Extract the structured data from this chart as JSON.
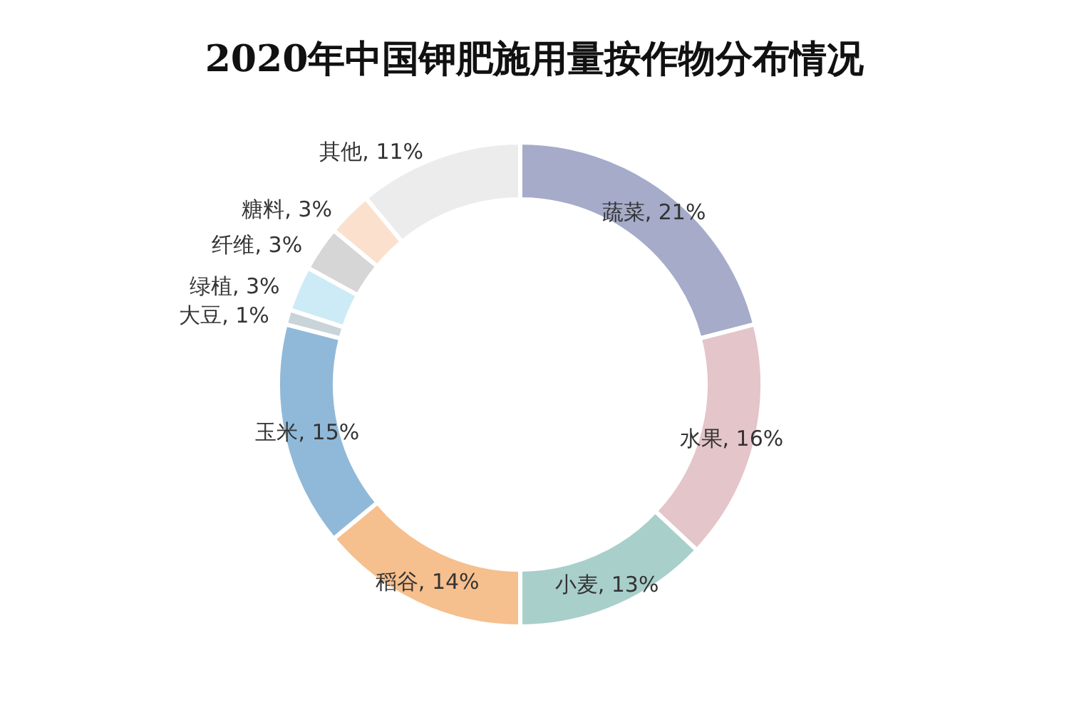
{
  "chart_data": {
    "type": "donut",
    "title": "2020年中国钾肥施用量按作物分布情况",
    "categories": [
      "蔬菜",
      "水果",
      "小麦",
      "稻谷",
      "玉米",
      "大豆",
      "绿植",
      "纤维",
      "糖料",
      "其他"
    ],
    "values": [
      21,
      16,
      13,
      14,
      15,
      1,
      3,
      3,
      3,
      11
    ],
    "value_labels": [
      "21%",
      "16%",
      "13%",
      "14%",
      "15%",
      "1%",
      "3%",
      "3%",
      "3%",
      "11%"
    ],
    "colors": [
      "#a5abc9",
      "#e4c5c9",
      "#a9cfcb",
      "#f6bf8e",
      "#90b9d9",
      "#c9d3da",
      "#cdebf6",
      "#d6d6d6",
      "#fbe1cd",
      "#ececec"
    ],
    "legend": false
  }
}
